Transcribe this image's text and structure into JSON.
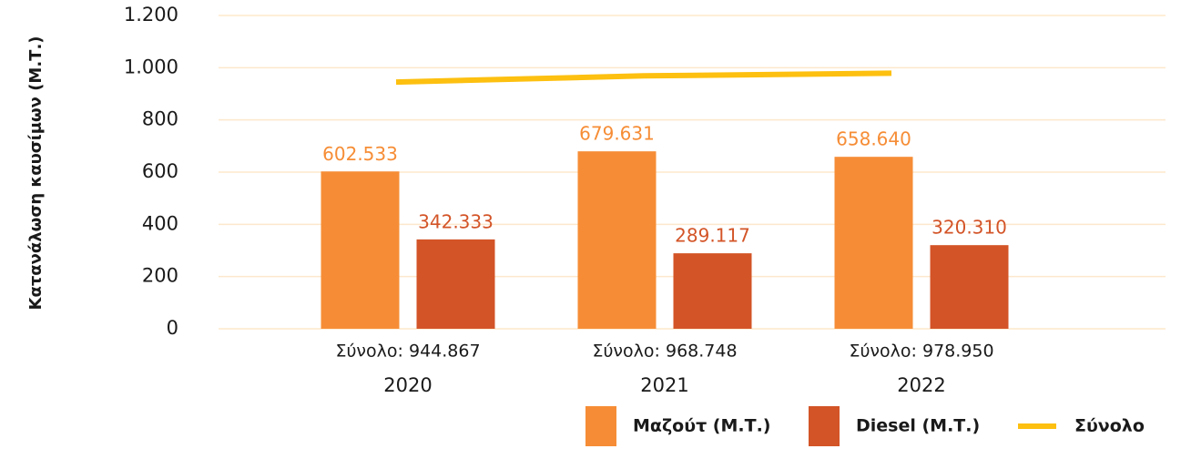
{
  "chart_data": {
    "type": "bar",
    "y_label": "Κατανάλωση καυσίμων (Μ.Τ.)",
    "categories": [
      "2020",
      "2021",
      "2022"
    ],
    "total_labels": [
      "Σύνολο: 944.867",
      "Σύνολο: 968.748",
      "Σύνολο: 978.950"
    ],
    "series": [
      {
        "name": "Μαζούτ (Μ.Τ.)",
        "color": "#f68d36",
        "values": [
          602.533,
          679.631,
          658.64
        ],
        "value_labels": [
          "602.533",
          "679.631",
          "658.640"
        ]
      },
      {
        "name": "Diesel (Μ.Τ.)",
        "color": "#d35427",
        "values": [
          342.333,
          289.117,
          320.31
        ],
        "value_labels": [
          "342.333",
          "289.117",
          "320.310"
        ]
      },
      {
        "name": "Σύνολο",
        "color": "#fdc010",
        "type": "line",
        "values": [
          944.867,
          968.748,
          978.95
        ]
      }
    ],
    "ylim": [
      0,
      1200
    ],
    "yticks": [
      0,
      200,
      400,
      600,
      800,
      {
        "value": 1000,
        "label": "1.000"
      },
      {
        "value": 1200,
        "label": "1.200"
      }
    ],
    "grid": true,
    "grid_color": "#fde8cc",
    "legend": "bottom-right"
  }
}
